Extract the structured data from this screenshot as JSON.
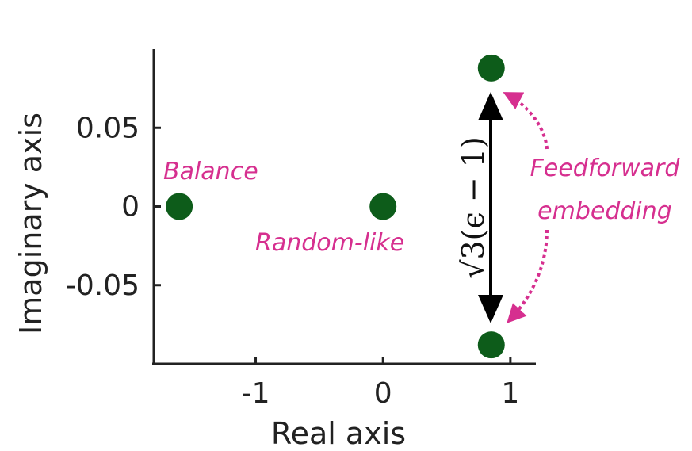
{
  "chart_data": {
    "type": "scatter",
    "xlabel": "Real axis",
    "ylabel": "Imaginary axis",
    "xlim": [
      -1.8,
      1.2
    ],
    "ylim": [
      -0.1,
      0.1
    ],
    "x_ticks": [
      -1,
      0,
      1
    ],
    "x_tick_labels": [
      "-1",
      "0",
      "1"
    ],
    "y_ticks": [
      -0.05,
      0,
      0.05
    ],
    "y_tick_labels": [
      "-0.05",
      "0",
      "0.05"
    ],
    "grid": false,
    "marker_color": "#0d5c1a",
    "points": [
      {
        "x": -1.6,
        "y": 0
      },
      {
        "x": 0,
        "y": 0
      },
      {
        "x": 0.85,
        "y": 0.088
      },
      {
        "x": 0.85,
        "y": -0.088
      }
    ],
    "annotations": {
      "balance": "Balance",
      "random_like": "Random-like",
      "feedforward_line1": "Feedforward",
      "feedforward_line2": "embedding",
      "gap_label": "√3(ϵ − 1)"
    },
    "annotation_color": "#d62f8f"
  }
}
